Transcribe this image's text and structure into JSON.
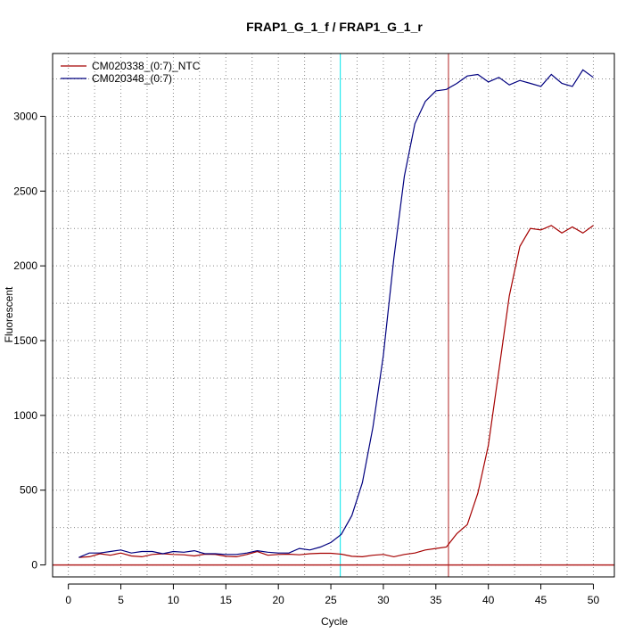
{
  "chart_data": {
    "type": "line",
    "title": "FRAP1_G_1_f / FRAP1_G_1_r",
    "xlabel": "Cycle",
    "ylabel": "Fluorescent",
    "xlim": [
      -1.5,
      52
    ],
    "ylim": [
      -80,
      3420
    ],
    "xticks": [
      0,
      5,
      10,
      15,
      20,
      25,
      30,
      35,
      40,
      45,
      50
    ],
    "yticks": [
      0,
      500,
      1000,
      1500,
      2000,
      2500,
      3000
    ],
    "grid": true,
    "legend_position": "top-left",
    "threshold_y": 0,
    "vlines": [
      {
        "x": 25.9,
        "color": "#00e5ee"
      },
      {
        "x": 36.2,
        "color": "#b22222"
      }
    ],
    "x": [
      1,
      2,
      3,
      4,
      5,
      6,
      7,
      8,
      9,
      10,
      11,
      12,
      13,
      14,
      15,
      16,
      17,
      18,
      19,
      20,
      21,
      22,
      23,
      24,
      25,
      26,
      27,
      28,
      29,
      30,
      31,
      32,
      33,
      34,
      35,
      36,
      37,
      38,
      39,
      40,
      41,
      42,
      43,
      44,
      45,
      46,
      47,
      48,
      49,
      50
    ],
    "series": [
      {
        "name": "CM020338_(0:7)_NTC",
        "color": "#a50000",
        "values": [
          50,
          55,
          75,
          65,
          80,
          60,
          55,
          70,
          75,
          70,
          68,
          60,
          72,
          70,
          58,
          55,
          70,
          90,
          65,
          70,
          72,
          68,
          75,
          78,
          78,
          72,
          58,
          55,
          65,
          70,
          55,
          70,
          80,
          100,
          110,
          120,
          210,
          270,
          480,
          800,
          1300,
          1800,
          2130,
          2250,
          2240,
          2270,
          2220,
          2260,
          2220,
          2270
        ]
      },
      {
        "name": "CM020348_(0:7)",
        "color": "#00007f",
        "values": [
          50,
          80,
          80,
          90,
          100,
          80,
          90,
          90,
          75,
          90,
          85,
          95,
          75,
          75,
          70,
          70,
          80,
          95,
          85,
          80,
          80,
          110,
          100,
          120,
          150,
          205,
          330,
          550,
          920,
          1400,
          2050,
          2600,
          2950,
          3100,
          3170,
          3180,
          3220,
          3270,
          3280,
          3230,
          3260,
          3210,
          3240,
          3220,
          3200,
          3280,
          3220,
          3200,
          3310,
          3260
        ]
      }
    ]
  }
}
